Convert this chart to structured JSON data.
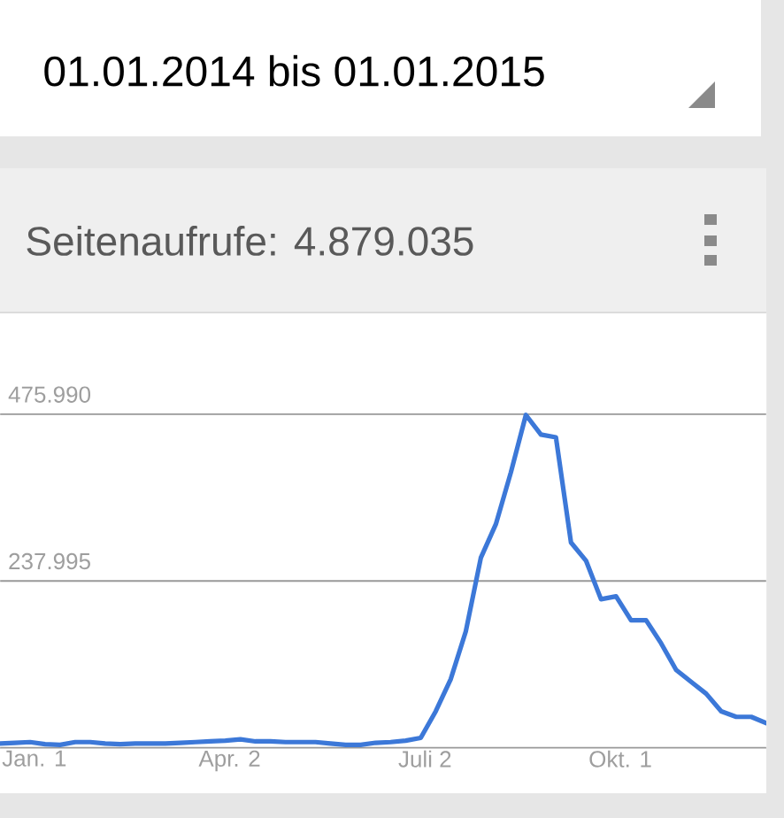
{
  "chart_data": {
    "type": "line",
    "subtitle": "01.01.2014 bis 01.01.2015",
    "title": "Seitenaufrufe: 4.879.035",
    "x": [
      "2013-12-16",
      "2013-12-23",
      "2013-12-30",
      "2014-01-06",
      "2014-01-13",
      "2014-01-20",
      "2014-01-27",
      "2014-02-03",
      "2014-02-10",
      "2014-02-17",
      "2014-02-24",
      "2014-03-03",
      "2014-03-10",
      "2014-03-17",
      "2014-03-24",
      "2014-03-31",
      "2014-04-07",
      "2014-04-14",
      "2014-04-21",
      "2014-04-28",
      "2014-05-05",
      "2014-05-12",
      "2014-05-19",
      "2014-05-26",
      "2014-06-02",
      "2014-06-09",
      "2014-06-16",
      "2014-06-23",
      "2014-06-30",
      "2014-07-07",
      "2014-07-14",
      "2014-07-21",
      "2014-07-28",
      "2014-08-04",
      "2014-08-11",
      "2014-08-18",
      "2014-08-25",
      "2014-09-01",
      "2014-09-08",
      "2014-09-15",
      "2014-09-22",
      "2014-09-29",
      "2014-10-06",
      "2014-10-13",
      "2014-10-20",
      "2014-10-27",
      "2014-11-03",
      "2014-11-10",
      "2014-11-17",
      "2014-11-24",
      "2014-12-01",
      "2014-12-08"
    ],
    "series": [
      {
        "color": "#3c78d8",
        "values": [
          6000,
          7000,
          8000,
          5000,
          4000,
          8000,
          8000,
          6000,
          5000,
          6000,
          6000,
          6000,
          7000,
          8000,
          9000,
          10000,
          12000,
          9000,
          9000,
          8000,
          8000,
          8000,
          6000,
          4000,
          4000,
          7000,
          8000,
          10000,
          14000,
          52000,
          98000,
          166000,
          271000,
          319000,
          393000,
          475000,
          447000,
          443000,
          293000,
          267000,
          212000,
          216000,
          182000,
          182000,
          149000,
          111000,
          94000,
          77000,
          52000,
          44000,
          44000,
          35000
        ]
      }
    ],
    "xlim": [
      "2013-12-16",
      "2014-12-08"
    ],
    "xticks": [
      {
        "value": "2014-01-01",
        "label": "Jan. 1"
      },
      {
        "value": "2014-04-02",
        "label": "Apr. 2"
      },
      {
        "value": "2014-07-02",
        "label": "Juli 2"
      },
      {
        "value": "2014-10-01",
        "label": "Okt. 1"
      }
    ],
    "ylim": [
      0,
      620000
    ],
    "yticks": [
      {
        "value": 0,
        "label": null
      },
      {
        "value": 237995,
        "label": "237.995"
      },
      {
        "value": 475990,
        "label": "475.990"
      }
    ],
    "grid": "y"
  }
}
